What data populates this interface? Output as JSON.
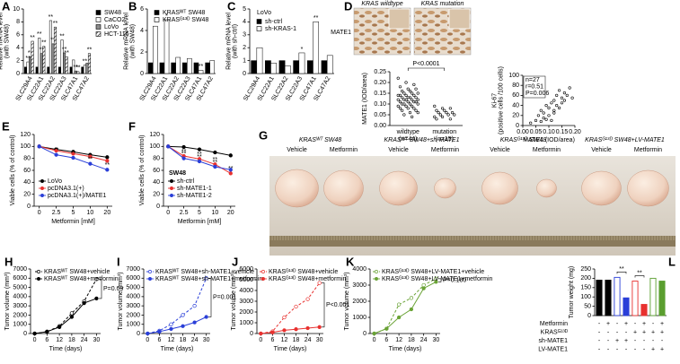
{
  "chart_data": [
    {
      "panel": "A",
      "type": "bar",
      "ylabel": [
        "Relative mRNA level",
        "(with SW48)"
      ],
      "categories": [
        "SLC29A4",
        "SLC22A1",
        "SLC22A2",
        "SLC22A3",
        "SLC47A1",
        "SLC47A2"
      ],
      "ylim": [
        0,
        10
      ],
      "yticks": [
        0,
        2,
        4,
        6,
        8,
        10
      ],
      "series": [
        {
          "name": "SW48",
          "color": "#000000",
          "fill": "#000000",
          "values": [
            1,
            1,
            1,
            1,
            1,
            1
          ]
        },
        {
          "name": "CaCO2",
          "color": "#000000",
          "fill": "#ffffff",
          "values": [
            1.8,
            5.5,
            8.2,
            5.2,
            2.1,
            1.3
          ],
          "significance": [
            "**",
            "**",
            "**",
            "**",
            null,
            "**"
          ]
        },
        {
          "name": "LoVo",
          "color": "#000000",
          "fill": "#8c8c8c",
          "values": [
            2.6,
            3.1,
            4.6,
            3.2,
            0.4,
            1.6
          ],
          "significance": [
            "**",
            "**",
            "**",
            "**",
            "**",
            null
          ]
        },
        {
          "name": "HCT-116",
          "color": "#000000",
          "fill": "#ffffff",
          "pattern": "hatch",
          "values": [
            5,
            4.2,
            7.2,
            2.6,
            0.3,
            3.1
          ],
          "significance": [
            "**",
            "**",
            "**",
            "**",
            "**",
            "**"
          ]
        }
      ]
    },
    {
      "panel": "B",
      "type": "bar",
      "ylabel": [
        "Relative mRNA level",
        "(with SW48)"
      ],
      "categories": [
        "SLC29A4",
        "SLC22A1",
        "SLC22A2",
        "SLC22A3",
        "SLC47A1",
        "SLC47A2"
      ],
      "ylim": [
        0,
        6
      ],
      "yticks": [
        0,
        2,
        4,
        6
      ],
      "series": [
        {
          "name": "KRASᵂᵀ SW48",
          "color": "#000000",
          "fill": "#000000",
          "values": [
            1,
            1,
            1,
            1,
            1,
            1
          ]
        },
        {
          "name": "KRASᴳ¹³ᴰ SW48",
          "color": "#000000",
          "fill": "#ffffff",
          "values": [
            4.4,
            5,
            1.5,
            1.4,
            0.3,
            1.2
          ],
          "significance": [
            "*",
            "*",
            null,
            null,
            "**",
            null
          ]
        }
      ]
    },
    {
      "panel": "C",
      "type": "bar",
      "title": "LoVo",
      "ylabel": [
        "Relative mRNA level",
        "(with sh-ctrl)"
      ],
      "categories": [
        "SLC29A4",
        "SLC22A1",
        "SLC22A2",
        "SLC22A3",
        "SLC47A1",
        "SLC47A2"
      ],
      "ylim": [
        0,
        5
      ],
      "yticks": [
        0,
        1,
        2,
        3,
        4,
        5
      ],
      "series": [
        {
          "name": "sh-ctrl",
          "color": "#000000",
          "fill": "#000000",
          "values": [
            1,
            1,
            1,
            1,
            1,
            1
          ]
        },
        {
          "name": "sh-KRAS-1",
          "color": "#000000",
          "fill": "#ffffff",
          "values": [
            2,
            0.8,
            0.6,
            1.6,
            4,
            1.4
          ],
          "significance": [
            null,
            null,
            null,
            "*",
            "**",
            null
          ]
        }
      ]
    },
    {
      "panel": "D",
      "type": "strip",
      "image_labels": [
        "KRAS wildtype",
        "KRAS mutation"
      ],
      "stain_label": "MATE1",
      "ylabel": "MATE1 (IOD/area)",
      "annotation": "P<0.0001",
      "categories": [
        "wildtype",
        "mutation"
      ],
      "category_notes": [
        "(n=44)",
        "(n=15)"
      ],
      "ylim": [
        0,
        0.25
      ],
      "yticks": [
        {
          "value": 0,
          "label": "0.00"
        },
        {
          "value": 0.05,
          "label": "0.05"
        },
        {
          "value": 0.1,
          "label": "0.10"
        },
        {
          "value": 0.15,
          "label": "0.15"
        },
        {
          "value": 0.2,
          "label": "0.20"
        },
        {
          "value": 0.25,
          "label": "0.25"
        }
      ],
      "groups": [
        {
          "color": "#000000",
          "values": [
            0.22,
            0.2,
            0.19,
            0.18,
            0.17,
            0.17,
            0.16,
            0.16,
            0.15,
            0.15,
            0.15,
            0.14,
            0.14,
            0.14,
            0.14,
            0.13,
            0.13,
            0.13,
            0.13,
            0.12,
            0.12,
            0.12,
            0.12,
            0.12,
            0.11,
            0.11,
            0.11,
            0.11,
            0.1,
            0.1,
            0.1,
            0.1,
            0.09,
            0.09,
            0.09,
            0.08,
            0.08,
            0.08,
            0.07,
            0.07,
            0.06,
            0.06,
            0.05,
            0.04
          ]
        },
        {
          "color": "#000000",
          "values": [
            0.09,
            0.08,
            0.08,
            0.07,
            0.07,
            0.06,
            0.06,
            0.06,
            0.05,
            0.05,
            0.05,
            0.04,
            0.04,
            0.03,
            0.03
          ]
        }
      ]
    },
    {
      "type": "scatter",
      "ylabel": [
        "Ki-67",
        "(positive cells /100 cells)"
      ],
      "xlabel": "MATE1 (IOD/area)",
      "stats": [
        "n=27",
        "r=0.51",
        "P=0.006"
      ],
      "color": "#000000",
      "xlim": [
        0,
        0.2
      ],
      "xticks": [
        {
          "value": 0,
          "label": "0.00"
        },
        {
          "value": 0.05,
          "label": "0.05"
        },
        {
          "value": 0.1,
          "label": "0.10"
        },
        {
          "value": 0.15,
          "label": "0.15"
        },
        {
          "value": 0.2,
          "label": "0.20"
        }
      ],
      "ylim": [
        0,
        100
      ],
      "yticks": [
        0,
        20,
        40,
        60,
        80,
        100
      ],
      "x": [
        0.03,
        0.05,
        0.06,
        0.07,
        0.07,
        0.08,
        0.08,
        0.09,
        0.09,
        0.1,
        0.1,
        0.11,
        0.11,
        0.12,
        0.12,
        0.12,
        0.13,
        0.13,
        0.14,
        0.14,
        0.15,
        0.15,
        0.16,
        0.16,
        0.17,
        0.18,
        0.19
      ],
      "values": [
        5,
        10,
        20,
        8,
        30,
        15,
        25,
        12,
        40,
        20,
        35,
        10,
        45,
        25,
        50,
        30,
        40,
        60,
        35,
        70,
        45,
        55,
        50,
        65,
        60,
        75,
        55
      ]
    },
    {
      "panel": "E",
      "type": "line",
      "ylabel": [
        "Viable cells (% of control)"
      ],
      "xlabel": "Metformin [mM]",
      "categories": [
        "0",
        "2.5",
        "5",
        "10",
        "20"
      ],
      "ylim": [
        0,
        120
      ],
      "yticks": [
        0,
        20,
        40,
        60,
        80,
        100,
        120
      ],
      "series": [
        {
          "name": "LoVo",
          "color": "#000000",
          "marker": "filled",
          "values": [
            100,
            95,
            91,
            86,
            82
          ]
        },
        {
          "name": "pcDNA3.1(+)",
          "color": "#e8312f",
          "marker": "filled",
          "values": [
            100,
            93,
            88,
            83,
            76
          ]
        },
        {
          "name": "pcDNA3.1(+)/MATE1",
          "color": "#2a3fd8",
          "marker": "filled",
          "values": [
            100,
            86,
            81,
            71,
            61
          ],
          "significance": [
            null,
            "**",
            "**",
            "**",
            "**"
          ]
        }
      ]
    },
    {
      "panel": "F",
      "type": "line",
      "title": "SW48",
      "ylabel": [
        "Viable cells (% of control)"
      ],
      "xlabel": "Metformin [mM]",
      "categories": [
        "0",
        "2.5",
        "5",
        "10",
        "20"
      ],
      "ylim": [
        0,
        120
      ],
      "yticks": [
        0,
        20,
        40,
        60,
        80,
        100,
        120
      ],
      "series": [
        {
          "name": "sh-ctrl",
          "color": "#000000",
          "marker": "filled",
          "values": [
            100,
            99,
            95,
            90,
            85
          ]
        },
        {
          "name": "sh-MATE1-1",
          "color": "#e8312f",
          "marker": "filled",
          "values": [
            100,
            84,
            79,
            70,
            55
          ],
          "significance": [
            null,
            "**",
            "**",
            "**",
            "**"
          ]
        },
        {
          "name": "sh-MATE1-2",
          "color": "#2a3fd8",
          "marker": "filled",
          "values": [
            100,
            80,
            75,
            66,
            61
          ],
          "significance": [
            null,
            "**",
            "**",
            "**",
            null
          ]
        }
      ]
    },
    {
      "panel": "G",
      "type": "image",
      "groups": [
        {
          "title": "KRASᵂᵀ SW48",
          "labels": [
            "Vehicle",
            "Metformin"
          ]
        },
        {
          "title": "KRASᵂᵀ SW48+sh-MATE1",
          "labels": [
            "Vehicle",
            "Metformin"
          ]
        },
        {
          "title": "KRASᴳ¹³ᴰ SW48",
          "labels": [
            "Vehicle",
            "Metformin"
          ]
        },
        {
          "title": "KRASᴳ¹³ᴰ SW48+LV-MATE1",
          "labels": [
            "Vehicle",
            "Metformin"
          ]
        }
      ]
    },
    {
      "panel": "H",
      "type": "line",
      "ylabel": [
        "Tumor volume (mm³)"
      ],
      "xlabel": "Time (days)",
      "annotation": "P=0.09",
      "x": [
        0,
        6,
        12,
        18,
        24,
        30
      ],
      "xlim": [
        -2,
        32
      ],
      "xticks": [
        0,
        6,
        12,
        18,
        24,
        30
      ],
      "ylim": [
        0,
        7000
      ],
      "yticks": [
        0,
        1000,
        2000,
        3000,
        4000,
        5000,
        6000,
        7000
      ],
      "series": [
        {
          "name": "KRASᵂᵀ SW48+vehicle",
          "color": "#000000",
          "marker": "open",
          "dash": true,
          "values": [
            0,
            200,
            800,
            2200,
            3500,
            5900
          ]
        },
        {
          "name": "KRASᵂᵀ SW48+metformin",
          "color": "#000000",
          "marker": "filled",
          "values": [
            0,
            200,
            700,
            1800,
            3300,
            3800
          ]
        }
      ]
    },
    {
      "panel": "I",
      "type": "line",
      "ylabel": [
        "Tumor volume (mm³)"
      ],
      "xlabel": "Time (days)",
      "annotation": "P=0.001",
      "x": [
        0,
        6,
        12,
        18,
        24,
        30
      ],
      "xlim": [
        -2,
        32
      ],
      "xticks": [
        0,
        6,
        12,
        18,
        24,
        30
      ],
      "ylim": [
        0,
        7000
      ],
      "yticks": [
        0,
        1000,
        2000,
        3000,
        4000,
        5000,
        6000,
        7000
      ],
      "series": [
        {
          "name": "KRASᵂᵀ SW48+sh-MATE1+vehicle",
          "color": "#2a3fd8",
          "marker": "open",
          "dash": true,
          "values": [
            0,
            300,
            1000,
            2000,
            3000,
            6000
          ]
        },
        {
          "name": "KRASᵂᵀ SW48+sh-MATE1+metformin",
          "color": "#2a3fd8",
          "marker": "filled",
          "values": [
            0,
            200,
            500,
            800,
            1200,
            1800
          ]
        }
      ]
    },
    {
      "panel": "J",
      "type": "line",
      "ylabel": [
        "Tumor volume (mm³)"
      ],
      "xlabel": "Time (days)",
      "annotation": "P<0.001",
      "x": [
        0,
        6,
        12,
        18,
        24,
        30
      ],
      "xlim": [
        -2,
        32
      ],
      "xticks": [
        0,
        6,
        12,
        18,
        24,
        30
      ],
      "ylim": [
        0,
        6000
      ],
      "yticks": [
        0,
        1000,
        2000,
        3000,
        4000,
        5000,
        6000
      ],
      "series": [
        {
          "name": "KRASᴳ¹³ᴰ SW48+vehicle",
          "color": "#e8312f",
          "marker": "open",
          "dash": true,
          "values": [
            0,
            200,
            1500,
            2500,
            3200,
            4700
          ]
        },
        {
          "name": "KRASᴳ¹³ᴰ SW48+metformin",
          "color": "#e8312f",
          "marker": "filled",
          "values": [
            0,
            100,
            300,
            400,
            500,
            600
          ]
        }
      ]
    },
    {
      "panel": "K",
      "type": "line",
      "ylabel": [
        "Tumor volume (mm³)"
      ],
      "xlabel": "Time (days)",
      "annotation": "P=0.180",
      "x": [
        0,
        6,
        12,
        18,
        24,
        30
      ],
      "xlim": [
        -2,
        32
      ],
      "xticks": [
        0,
        6,
        12,
        18,
        24,
        30
      ],
      "ylim": [
        0,
        4000
      ],
      "yticks": [
        0,
        1000,
        2000,
        3000,
        4000
      ],
      "series": [
        {
          "name": "KRASᴳ¹³ᴰ SW48+LV-MATE1+vehicle",
          "color": "#6aa336",
          "marker": "open",
          "dash": true,
          "values": [
            0,
            300,
            1800,
            2200,
            3000,
            3400
          ]
        },
        {
          "name": "KRASᴳ¹³ᴰ SW48+LV-MATE1+metformin",
          "color": "#6aa336",
          "marker": "filled",
          "values": [
            0,
            300,
            1000,
            1500,
            2800,
            3200
          ]
        }
      ]
    },
    {
      "panel": "L",
      "type": "bar",
      "ylabel": [
        "Tumor weight (mg)"
      ],
      "ylim": [
        0,
        250
      ],
      "yticks": [
        0,
        50,
        100,
        150,
        200,
        250
      ],
      "values": [
        190,
        190,
        205,
        95,
        185,
        60,
        200,
        185
      ],
      "colors": [
        "#000000",
        "#000000",
        "#2a3fd8",
        "#2a3fd8",
        "#e8312f",
        "#e8312f",
        "#5a9e2f",
        "#5a9e2f"
      ],
      "fills": [
        "#000000",
        "#000000",
        "#ffffff",
        "#2a3fd8",
        "#ffffff",
        "#e8312f",
        "#ffffff",
        "#5a9e2f"
      ],
      "significance": [
        null,
        null,
        null,
        "**",
        null,
        "**",
        null,
        null
      ],
      "conditions": [
        {
          "label": "Metformin",
          "marks": [
            "-",
            "+",
            "-",
            "+",
            "-",
            "+",
            "-",
            "+"
          ]
        },
        {
          "label": "KRASᴳ¹³ᴰ",
          "marks": [
            "-",
            "-",
            "-",
            "-",
            "+",
            "+",
            "+",
            "+"
          ]
        },
        {
          "label": "sh-MATE1",
          "marks": [
            "-",
            "-",
            "+",
            "+",
            "-",
            "-",
            "-",
            "-"
          ]
        },
        {
          "label": "LV-MATE1",
          "marks": [
            "-",
            "-",
            "-",
            "-",
            "-",
            "-",
            "+",
            "+"
          ]
        }
      ]
    }
  ]
}
